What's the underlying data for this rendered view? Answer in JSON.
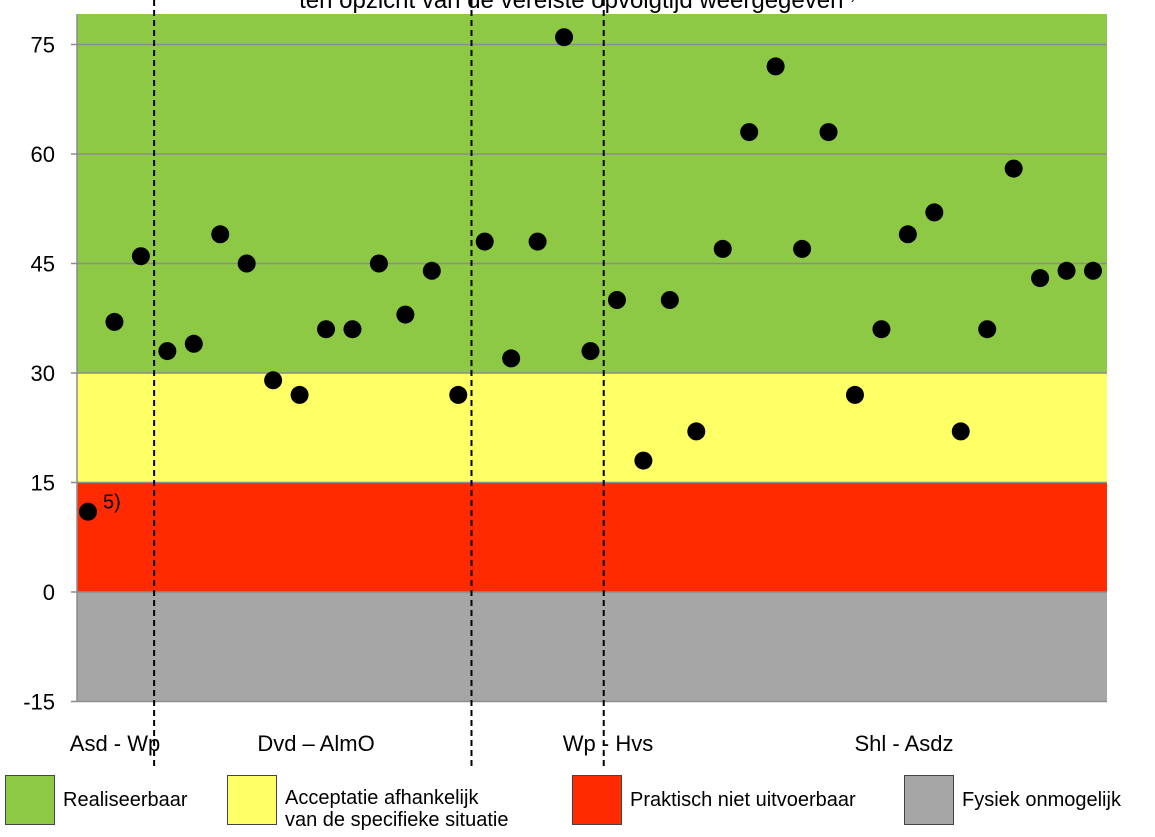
{
  "chart_data": {
    "type": "scatter",
    "title_visible_fragment": "ten opzicht van de vereiste opvolgtijd weergegeven",
    "title_note_marker": "5)",
    "ylim": [
      -15,
      80
    ],
    "yticks": [
      -15,
      0,
      15,
      30,
      45,
      60,
      75
    ],
    "grid": true,
    "bands": [
      {
        "name": "Fysiek onmogelijk",
        "from": -15,
        "to": 0,
        "color": "#a6a6a6"
      },
      {
        "name": "Praktisch niet uitvoerbaar",
        "from": 0,
        "to": 15,
        "color": "#ff2a00"
      },
      {
        "name": "Acceptatie afhankelijk van de specifieke situatie",
        "from": 15,
        "to": 30,
        "color": "#ffff66"
      },
      {
        "name": "Realiseerbaar",
        "from": 30,
        "to": 80,
        "color": "#8dc944"
      }
    ],
    "groups": [
      {
        "label": "Asd - Wp",
        "values": [
          11,
          37,
          46
        ]
      },
      {
        "label": "Dvd – AlmO",
        "values": [
          33,
          34,
          49,
          45,
          29,
          27,
          36,
          36,
          45,
          38,
          44,
          27
        ]
      },
      {
        "label": "Wp - Hvs",
        "values": [
          48,
          32,
          48,
          76,
          33
        ]
      },
      {
        "label": "Shl - Asdz",
        "values": [
          40,
          18,
          40,
          22,
          47,
          63,
          72,
          47,
          63,
          27,
          36,
          49,
          52,
          22,
          36,
          58,
          43,
          44,
          44
        ]
      }
    ],
    "point_note": {
      "group": 0,
      "index": 0,
      "text": "5)"
    },
    "point_color": "#000000"
  },
  "legend": [
    {
      "label": "Realiseerbaar",
      "color": "#8dc944"
    },
    {
      "label_line1": "Acceptatie afhankelijk",
      "label_line2": "van de specifieke situatie",
      "color": "#ffff66"
    },
    {
      "label": "Praktisch niet uitvoerbaar",
      "color": "#ff2a00"
    },
    {
      "label": "Fysiek onmogelijk",
      "color": "#a6a6a6"
    }
  ]
}
